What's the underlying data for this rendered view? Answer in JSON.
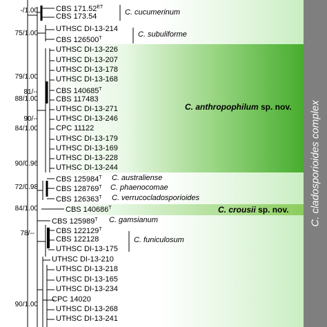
{
  "clade_labels": {
    "anthropophilum": {
      "name": "C. anthropophilum",
      "suffix": "sp. nov."
    },
    "crousii": {
      "name": "C. crousii",
      "suffix": "sp. nov."
    }
  },
  "side_label": "C. cladosporioides complex",
  "species_notes": [
    {
      "id": "cucumerinum",
      "text": "C. cucumerinum"
    },
    {
      "id": "subuliforme",
      "text": "C. subuliforme"
    },
    {
      "id": "funiculosum",
      "text": "C. funiculosum"
    }
  ],
  "taxa": [
    {
      "id": "t00",
      "label": "CBS 171.52",
      "sup": "ET",
      "note": ""
    },
    {
      "id": "t01",
      "label": "CBS 173.54",
      "sup": "",
      "note": ""
    },
    {
      "id": "t02",
      "label": "UTHSC DI-13-214",
      "sup": "",
      "note": ""
    },
    {
      "id": "t03",
      "label": "CBS 126500",
      "sup": "T",
      "note": ""
    },
    {
      "id": "t04",
      "label": "UTHSC DI-13-226",
      "sup": "",
      "note": ""
    },
    {
      "id": "t05",
      "label": "UTHSC DI-13-207",
      "sup": "",
      "note": ""
    },
    {
      "id": "t06",
      "label": "UTHSC DI-13-178",
      "sup": "",
      "note": ""
    },
    {
      "id": "t07",
      "label": "UTHSC DI-13-168",
      "sup": "",
      "note": ""
    },
    {
      "id": "t08",
      "label": "CBS 140685",
      "sup": "T",
      "note": ""
    },
    {
      "id": "t09",
      "label": "CBS 117483",
      "sup": "",
      "note": ""
    },
    {
      "id": "t10",
      "label": "UTHSC DI-13-271",
      "sup": "",
      "note": ""
    },
    {
      "id": "t11",
      "label": "UTHSC DI-13-246",
      "sup": "",
      "note": ""
    },
    {
      "id": "t12",
      "label": "CPC 11122",
      "sup": "",
      "note": ""
    },
    {
      "id": "t13",
      "label": "UTHSC DI-13-179",
      "sup": "",
      "note": ""
    },
    {
      "id": "t14",
      "label": "UTHSC DI-13-169",
      "sup": "",
      "note": ""
    },
    {
      "id": "t15",
      "label": "UTHSC DI-13-228",
      "sup": "",
      "note": ""
    },
    {
      "id": "t16",
      "label": "UTHSC DI-13-244",
      "sup": "",
      "note": ""
    },
    {
      "id": "t17",
      "label": "CBS 125984",
      "sup": "T",
      "note": "C. australiense"
    },
    {
      "id": "t18",
      "label": "CBS 128769",
      "sup": "T",
      "note": "C. phaenocomae"
    },
    {
      "id": "t19",
      "label": "CBS 126363",
      "sup": "T",
      "note": "C. verrucocladosporioides"
    },
    {
      "id": "t20",
      "label": "CBS 140686",
      "sup": "T",
      "note": ""
    },
    {
      "id": "t21",
      "label": "CBS 125989",
      "sup": "T",
      "note": "C. gamsianum"
    },
    {
      "id": "t22",
      "label": "CBS 122129",
      "sup": "T",
      "note": ""
    },
    {
      "id": "t23",
      "label": "CBS 122128",
      "sup": "",
      "note": ""
    },
    {
      "id": "t24",
      "label": "UTHSC DI-13-175",
      "sup": "",
      "note": ""
    },
    {
      "id": "t25",
      "label": "UTHSC DI-13-210",
      "sup": "",
      "note": ""
    },
    {
      "id": "t26",
      "label": "UTHSC DI-13-218",
      "sup": "",
      "note": ""
    },
    {
      "id": "t27",
      "label": "UTHSC DI-13-165",
      "sup": "",
      "note": ""
    },
    {
      "id": "t28",
      "label": "UTHSC DI-13-234",
      "sup": "",
      "note": ""
    },
    {
      "id": "t29",
      "label": "CPC 14020",
      "sup": "",
      "note": ""
    },
    {
      "id": "t30",
      "label": "UTHSC DI-13-268",
      "sup": "",
      "note": ""
    },
    {
      "id": "t31",
      "label": "UTHSC DI-13-241",
      "sup": "",
      "note": ""
    }
  ],
  "support_values": [
    "-/1.00",
    "75/1.00",
    "79/1.00",
    "81/--",
    "88/1.00",
    "90/--",
    "84/1.00",
    "90/0.96",
    "72/0.98",
    "84/1.00",
    "78/--",
    "90/1.00"
  ],
  "colors": {
    "green_dark": "#3fa82a",
    "green_light": "#c8ecc0",
    "green_pale": "#e6f7e3",
    "side_bar": "#7f7f7f",
    "crousii_band": "#8ccc5c"
  }
}
